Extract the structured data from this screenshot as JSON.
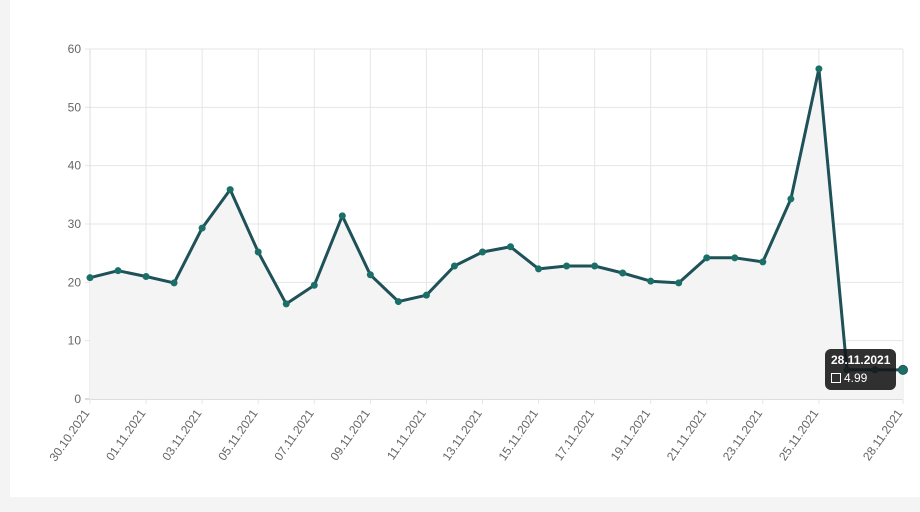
{
  "chart_data": {
    "type": "line",
    "x": [
      "30.10.2021",
      "31.10.2021",
      "01.11.2021",
      "02.11.2021",
      "03.11.2021",
      "04.11.2021",
      "05.11.2021",
      "06.11.2021",
      "07.11.2021",
      "08.11.2021",
      "09.11.2021",
      "10.11.2021",
      "11.11.2021",
      "12.11.2021",
      "13.11.2021",
      "14.11.2021",
      "15.11.2021",
      "16.11.2021",
      "17.11.2021",
      "18.11.2021",
      "19.11.2021",
      "20.11.2021",
      "21.11.2021",
      "22.11.2021",
      "23.11.2021",
      "24.11.2021",
      "25.11.2021",
      "26.11.2021",
      "27.11.2021",
      "28.11.2021"
    ],
    "x_tick_labels": [
      "30.10.2021",
      "01.11.2021",
      "03.11.2021",
      "05.11.2021",
      "07.11.2021",
      "09.11.2021",
      "11.11.2021",
      "13.11.2021",
      "15.11.2021",
      "17.11.2021",
      "19.11.2021",
      "21.11.2021",
      "23.11.2021",
      "25.11.2021",
      "28.11.2021"
    ],
    "series": [
      {
        "values": [
          20.8,
          22.0,
          21.0,
          19.9,
          29.3,
          35.9,
          25.2,
          16.3,
          19.5,
          31.4,
          21.3,
          16.7,
          17.8,
          22.8,
          25.2,
          26.1,
          22.3,
          22.8,
          22.8,
          21.6,
          20.2,
          19.9,
          24.2,
          24.2,
          23.5,
          34.3,
          56.6,
          5.0,
          5.0,
          4.99
        ]
      }
    ],
    "y_ticks": [
      0,
      10,
      20,
      30,
      40,
      50,
      60
    ],
    "ylim": [
      0,
      60
    ],
    "grid": true,
    "colors": {
      "line": "#1e5158",
      "point": "#1a7068",
      "fill": "#f4f4f4"
    },
    "tooltip": {
      "title": "28.11.2021",
      "value": "4.99"
    }
  }
}
